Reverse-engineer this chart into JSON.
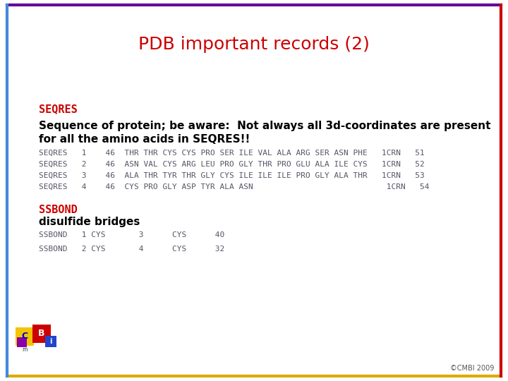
{
  "title": "PDB important records (2)",
  "title_color": "#cc0000",
  "title_fontsize": 18,
  "background_color": "#ffffff",
  "border_top_color": "#660099",
  "border_right_color": "#cc0000",
  "border_left_color": "#4488dd",
  "border_bottom_color": "#ddaa00",
  "seqres_label": "SEQRES",
  "seqres_label_color": "#cc0000",
  "seqres_desc_line1": "Sequence of protein; be aware:  Not always all 3d-coordinates are present",
  "seqres_desc_line2": "for all the amino acids in SEQRES!!",
  "seqres_lines": [
    "SEQRES   1    46  THR THR CYS CYS PRO SER ILE VAL ALA ARG SER ASN PHE   1CRN   51",
    "SEQRES   2    46  ASN VAL CYS ARG LEU PRO GLY THR PRO GLU ALA ILE CYS   1CRN   52",
    "SEQRES   3    46  ALA THR TYR THR GLY CYS ILE ILE ILE PRO GLY ALA THR   1CRN   53",
    "SEQRES   4    46  CYS PRO GLY ASP TYR ALA ASN                            1CRN   54"
  ],
  "ssbond_label": "SSBOND",
  "ssbond_label_color": "#cc0000",
  "ssbond_desc": "disulfide bridges",
  "ssbond_lines": [
    "SSBOND   1 CYS       3      CYS      40",
    "SSBOND   2 CYS       4      CYS      32"
  ],
  "mono_color": "#555566",
  "mono_fontsize": 8,
  "desc_fontsize": 11,
  "label_fontsize": 11,
  "copyright": "©CMBI 2009"
}
